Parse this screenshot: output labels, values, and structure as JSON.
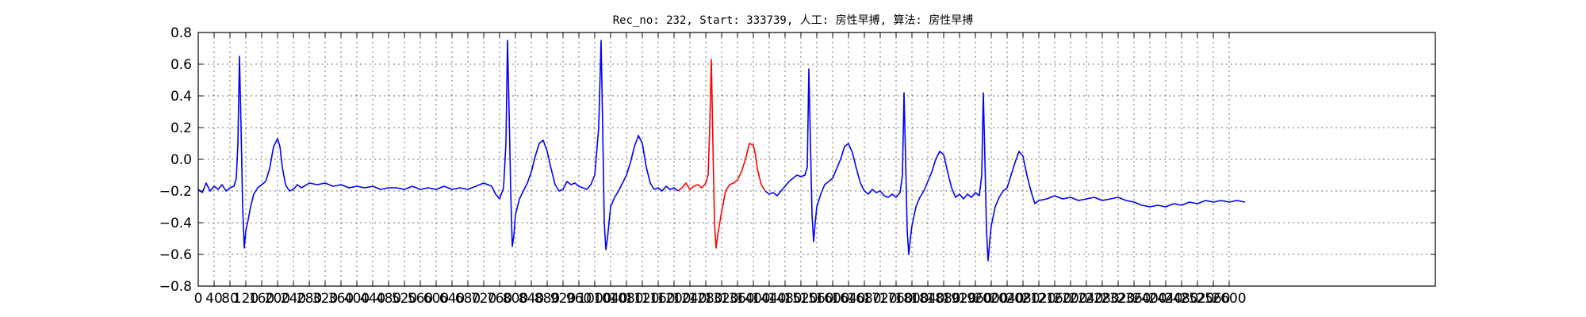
{
  "chart_data": {
    "type": "line",
    "title": "Rec_no: 232, Start: 333739, 人工: 房性早搏, 算法: 房性早搏",
    "xlabel": "",
    "ylabel": "",
    "xlim": [
      0,
      3000
    ],
    "ylim": [
      -0.8,
      0.8
    ],
    "yticks": [
      -0.8,
      -0.6,
      -0.4,
      -0.2,
      0.0,
      0.2,
      0.4,
      0.6,
      0.8
    ],
    "ytick_labels": [
      "−0.8",
      "−0.6",
      "−0.4",
      "−0.2",
      "0.0",
      "0.2",
      "0.4",
      "0.6",
      "0.8"
    ],
    "xtick_step": 40,
    "xtick_labels": [
      "0",
      "40",
      "80",
      "120",
      "160",
      "200",
      "240",
      "280",
      "320",
      "360",
      "400",
      "440",
      "480",
      "520",
      "560",
      "600",
      "640",
      "680",
      "720",
      "760",
      "800",
      "840",
      "880",
      "920",
      "960",
      "1000",
      "1040",
      "1080",
      "1120",
      "1160",
      "1200",
      "1240",
      "1280",
      "1320",
      "1360",
      "1400",
      "1440",
      "1480",
      "1520",
      "1560",
      "1600",
      "1640",
      "1680",
      "1720",
      "1760",
      "1800",
      "1840",
      "1880",
      "1920",
      "1960",
      "2000",
      "2040",
      "2080",
      "2120",
      "2160",
      "2200",
      "2240",
      "2280",
      "2320",
      "2360",
      "2400",
      "2440",
      "2480",
      "2520",
      "2560",
      "2600"
    ],
    "grid": true,
    "colors": {
      "normal": "#0000ff",
      "highlight": "#ff0000",
      "axes": "#000000"
    },
    "series": [
      {
        "color": "#0000ff",
        "x": [
          0,
          10,
          20,
          30,
          40,
          50,
          60,
          70,
          80,
          90,
          96,
          100,
          104,
          108,
          112,
          116,
          120,
          126,
          132,
          140,
          150,
          160,
          170,
          180,
          190,
          200,
          206,
          212,
          220,
          230,
          240,
          250,
          260,
          280,
          300,
          320,
          340,
          360,
          380,
          400,
          420,
          440,
          460,
          480,
          500,
          520,
          540,
          560,
          580,
          600,
          620,
          640,
          660,
          680,
          700,
          720,
          740,
          750,
          760,
          770,
          776,
          780,
          784,
          788,
          792,
          796,
          800,
          810,
          820,
          830,
          840,
          850,
          860,
          870,
          880,
          890,
          900,
          910,
          920,
          930,
          940,
          950,
          960,
          970,
          980,
          990,
          1000,
          1010,
          1016,
          1020,
          1024,
          1028,
          1032,
          1036,
          1040,
          1050,
          1060,
          1070,
          1080,
          1090,
          1100,
          1110,
          1120,
          1130,
          1140,
          1150,
          1160,
          1170,
          1180,
          1190,
          1200,
          1210
        ],
        "y": [
          -0.19,
          -0.21,
          -0.15,
          -0.2,
          -0.17,
          -0.19,
          -0.16,
          -0.2,
          -0.18,
          -0.17,
          -0.12,
          0.1,
          0.65,
          0.2,
          -0.3,
          -0.56,
          -0.45,
          -0.38,
          -0.3,
          -0.22,
          -0.18,
          -0.16,
          -0.14,
          -0.06,
          0.08,
          0.13,
          0.08,
          -0.05,
          -0.16,
          -0.2,
          -0.19,
          -0.16,
          -0.18,
          -0.15,
          -0.16,
          -0.15,
          -0.17,
          -0.16,
          -0.18,
          -0.17,
          -0.18,
          -0.17,
          -0.19,
          -0.18,
          -0.18,
          -0.19,
          -0.17,
          -0.19,
          -0.18,
          -0.19,
          -0.17,
          -0.19,
          -0.18,
          -0.19,
          -0.17,
          -0.15,
          -0.17,
          -0.22,
          -0.25,
          -0.18,
          0.1,
          0.75,
          0.3,
          -0.2,
          -0.55,
          -0.48,
          -0.35,
          -0.25,
          -0.2,
          -0.15,
          -0.08,
          0.02,
          0.1,
          0.12,
          0.05,
          -0.06,
          -0.16,
          -0.2,
          -0.19,
          -0.14,
          -0.16,
          -0.15,
          -0.17,
          -0.18,
          -0.19,
          -0.16,
          -0.1,
          0.2,
          0.75,
          0.2,
          -0.4,
          -0.57,
          -0.5,
          -0.4,
          -0.3,
          -0.24,
          -0.2,
          -0.15,
          -0.1,
          -0.02,
          0.08,
          0.15,
          0.1,
          -0.05,
          -0.15,
          -0.19,
          -0.18,
          -0.2,
          -0.17,
          -0.19,
          -0.18,
          -0.2
        ]
      },
      {
        "color": "#ff0000",
        "x": [
          1210,
          1220,
          1230,
          1240,
          1250,
          1260,
          1270,
          1280,
          1286,
          1290,
          1294,
          1298,
          1302,
          1306,
          1310,
          1320,
          1330,
          1340,
          1350,
          1360,
          1370,
          1380,
          1390,
          1400,
          1406,
          1410,
          1420,
          1430
        ],
        "y": [
          -0.2,
          -0.18,
          -0.15,
          -0.19,
          -0.17,
          -0.16,
          -0.18,
          -0.15,
          -0.1,
          0.2,
          0.63,
          0.1,
          -0.4,
          -0.56,
          -0.48,
          -0.33,
          -0.2,
          -0.16,
          -0.15,
          -0.13,
          -0.08,
          0.0,
          0.1,
          0.09,
          0.02,
          -0.06,
          -0.16,
          -0.2
        ]
      },
      {
        "color": "#0000ff",
        "x": [
          1430,
          1440,
          1450,
          1460,
          1470,
          1480,
          1490,
          1500,
          1510,
          1520,
          1530,
          1536,
          1540,
          1544,
          1548,
          1552,
          1556,
          1560,
          1570,
          1580,
          1590,
          1600,
          1610,
          1620,
          1630,
          1640,
          1650,
          1660,
          1670,
          1680,
          1690,
          1700,
          1710,
          1720,
          1730,
          1740,
          1750,
          1760,
          1770,
          1776,
          1780,
          1784,
          1788,
          1792,
          1796,
          1800,
          1810,
          1820,
          1830,
          1840,
          1850,
          1860,
          1870,
          1880,
          1890,
          1900,
          1910,
          1920,
          1930,
          1940,
          1950,
          1960,
          1970,
          1976,
          1980,
          1984,
          1988,
          1992,
          1996,
          2000,
          2010,
          2020,
          2030,
          2040,
          2050,
          2060,
          2070,
          2080,
          2090,
          2100,
          2110,
          2120,
          2140,
          2160,
          2180,
          2200,
          2220,
          2240,
          2260,
          2280,
          2300,
          2320,
          2340,
          2360,
          2380,
          2400,
          2420,
          2440,
          2460,
          2480,
          2500,
          2520,
          2540,
          2560,
          2580,
          2600,
          2620,
          2640
        ],
        "y": [
          -0.2,
          -0.22,
          -0.21,
          -0.23,
          -0.2,
          -0.17,
          -0.14,
          -0.12,
          -0.1,
          -0.11,
          -0.1,
          -0.05,
          0.57,
          0.1,
          -0.35,
          -0.52,
          -0.4,
          -0.3,
          -0.22,
          -0.16,
          -0.14,
          -0.12,
          -0.06,
          0.0,
          0.08,
          0.1,
          0.04,
          -0.06,
          -0.15,
          -0.2,
          -0.22,
          -0.19,
          -0.21,
          -0.2,
          -0.23,
          -0.24,
          -0.22,
          -0.24,
          -0.21,
          -0.1,
          0.42,
          0.0,
          -0.45,
          -0.6,
          -0.5,
          -0.42,
          -0.3,
          -0.24,
          -0.2,
          -0.14,
          -0.08,
          0.0,
          0.05,
          0.03,
          -0.08,
          -0.18,
          -0.24,
          -0.22,
          -0.25,
          -0.22,
          -0.24,
          -0.21,
          -0.23,
          -0.1,
          0.42,
          0.0,
          -0.45,
          -0.64,
          -0.52,
          -0.42,
          -0.3,
          -0.24,
          -0.2,
          -0.18,
          -0.1,
          -0.02,
          0.05,
          0.02,
          -0.1,
          -0.2,
          -0.28,
          -0.26,
          -0.25,
          -0.23,
          -0.25,
          -0.24,
          -0.26,
          -0.25,
          -0.24,
          -0.26,
          -0.25,
          -0.24,
          -0.26,
          -0.27,
          -0.29,
          -0.3,
          -0.29,
          -0.3,
          -0.28,
          -0.29,
          -0.27,
          -0.28,
          -0.26,
          -0.27,
          -0.26,
          -0.27,
          -0.26,
          -0.27
        ]
      }
    ]
  }
}
